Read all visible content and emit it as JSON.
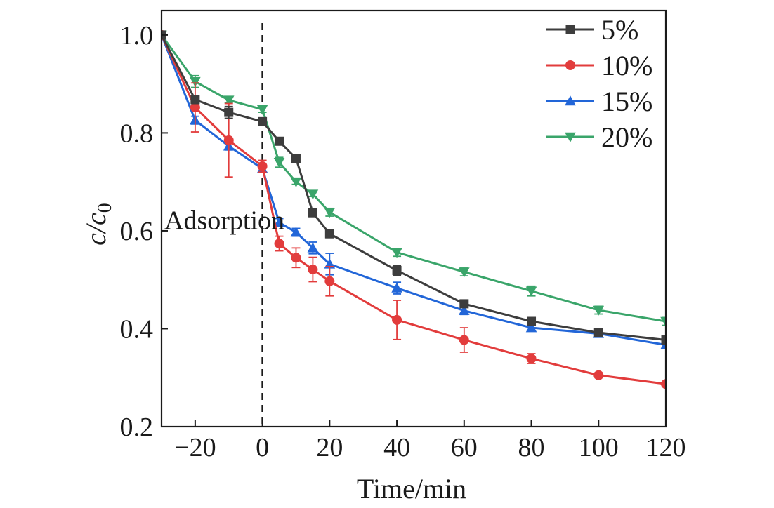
{
  "chart_data": {
    "type": "line",
    "title": "",
    "xlabel": "Time/min",
    "ylabel_main": "c/c",
    "ylabel_sub": "0",
    "xlim": [
      -30,
      120
    ],
    "ylim": [
      0.2,
      1.05
    ],
    "x_ticks": [
      -20,
      0,
      20,
      40,
      60,
      80,
      100,
      120
    ],
    "x_tick_labels": [
      "−20",
      "0",
      "20",
      "40",
      "60",
      "80",
      "100",
      "120"
    ],
    "y_ticks": [
      0.2,
      0.4,
      0.6,
      0.8,
      1.0
    ],
    "y_tick_labels": [
      "0.2",
      "0.4",
      "0.6",
      "0.8",
      "1.0"
    ],
    "grid": false,
    "legend_position": "top-right",
    "annotation": {
      "text": "Adsorption",
      "x": -30,
      "y": 0.622
    },
    "reference_line": {
      "x": 0,
      "style": "dashed"
    },
    "x": [
      -30,
      -20,
      -10,
      0,
      5,
      10,
      15,
      20,
      40,
      60,
      80,
      100,
      120
    ],
    "series": [
      {
        "name": "5%",
        "color": "#3d3d3d",
        "marker": "square",
        "values": [
          1.0,
          0.868,
          0.842,
          0.823,
          0.783,
          0.748,
          0.637,
          0.594,
          0.519,
          0.451,
          0.415,
          0.392,
          0.377
        ],
        "errors": [
          0,
          0.008,
          0.012,
          0.005,
          0.006,
          0.006,
          0.008,
          0.008,
          0.01,
          0.006,
          0.006,
          0.006,
          0.006
        ]
      },
      {
        "name": "10%",
        "color": "#e23c3c",
        "marker": "circle",
        "values": [
          1.0,
          0.852,
          0.785,
          0.732,
          0.574,
          0.545,
          0.521,
          0.497,
          0.418,
          0.377,
          0.339,
          0.305,
          0.287
        ],
        "errors": [
          0,
          0.05,
          0.075,
          0.012,
          0.015,
          0.02,
          0.025,
          0.03,
          0.04,
          0.025,
          0.01,
          0.005,
          0.005
        ]
      },
      {
        "name": "15%",
        "color": "#2266d8",
        "marker": "triangle-up",
        "values": [
          1.0,
          0.826,
          0.773,
          0.727,
          0.617,
          0.597,
          0.565,
          0.532,
          0.483,
          0.437,
          0.402,
          0.39,
          0.367
        ],
        "errors": [
          0,
          0.008,
          0.008,
          0.008,
          0.008,
          0.008,
          0.012,
          0.022,
          0.012,
          0.008,
          0.006,
          0.005,
          0.005
        ]
      },
      {
        "name": "20%",
        "color": "#3aa56a",
        "marker": "triangle-down",
        "values": [
          1.0,
          0.905,
          0.867,
          0.848,
          0.74,
          0.7,
          0.675,
          0.638,
          0.556,
          0.516,
          0.477,
          0.438,
          0.415
        ],
        "errors": [
          0,
          0.012,
          0.005,
          0.006,
          0.01,
          0.005,
          0.005,
          0.008,
          0.008,
          0.008,
          0.01,
          0.008,
          0.008
        ]
      }
    ]
  }
}
